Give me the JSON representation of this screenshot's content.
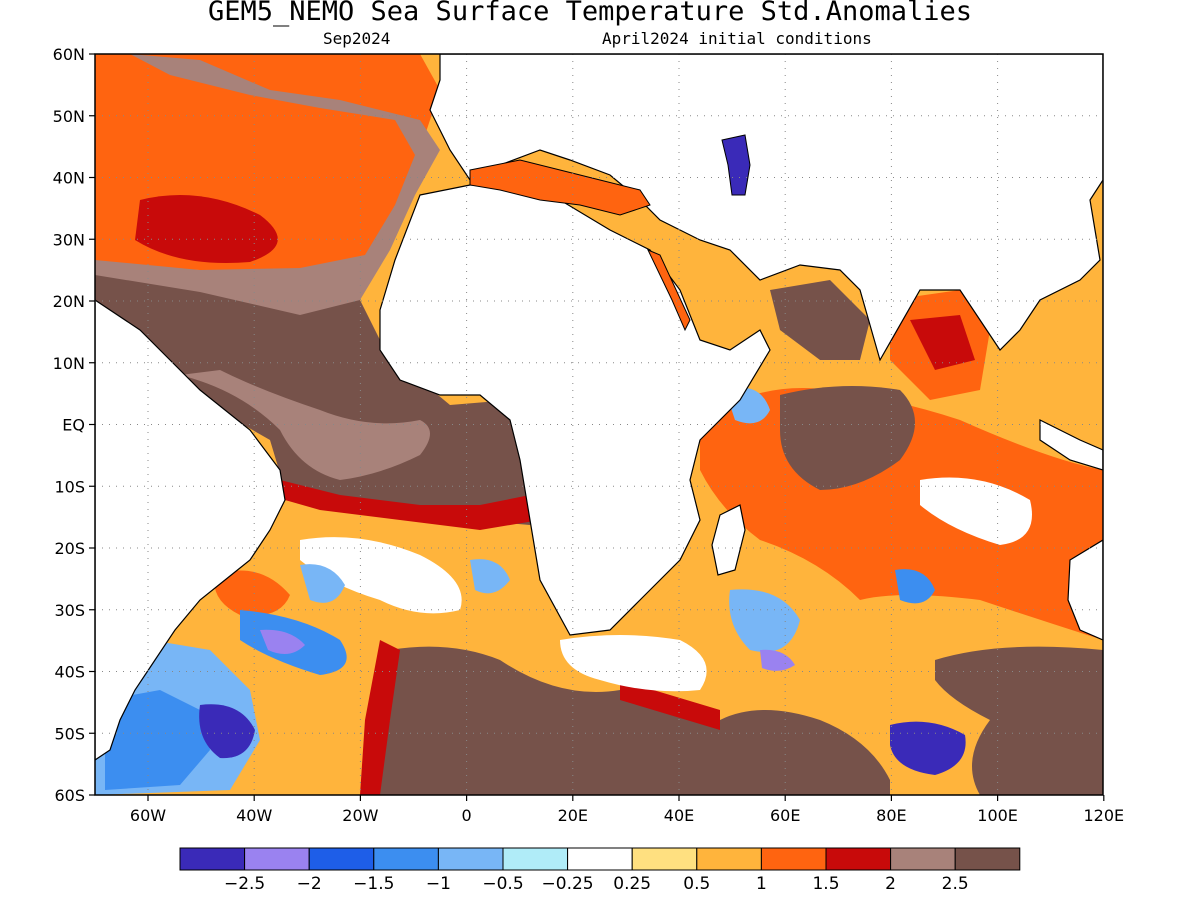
{
  "title": "GEM5_NEMO Sea Surface Temperature Std.Anomalies",
  "subtitle_left": "Sep2024",
  "subtitle_right": "April2024 initial conditions",
  "lat_ticks": [
    "60N",
    "50N",
    "40N",
    "30N",
    "20N",
    "10N",
    "EQ",
    "10S",
    "20S",
    "30S",
    "40S",
    "50S",
    "60S"
  ],
  "lon_ticks": [
    "60W",
    "40W",
    "20W",
    "0",
    "20E",
    "40E",
    "60E",
    "80E",
    "100E",
    "120E"
  ],
  "colorbar": {
    "colors": [
      "#3a2ab8",
      "#9a82f0",
      "#1e5ee8",
      "#3c8ef0",
      "#78b6f6",
      "#b0ecf8",
      "#ffffff",
      "#ffe080",
      "#ffb43c",
      "#ff6410",
      "#c80a0a",
      "#a8827a",
      "#76524a"
    ],
    "labels": [
      "−2.5",
      "−2",
      "−1.5",
      "−1",
      "−0.5",
      "−0.25",
      "0.25",
      "0.5",
      "1",
      "1.5",
      "2",
      "2.5"
    ]
  }
}
